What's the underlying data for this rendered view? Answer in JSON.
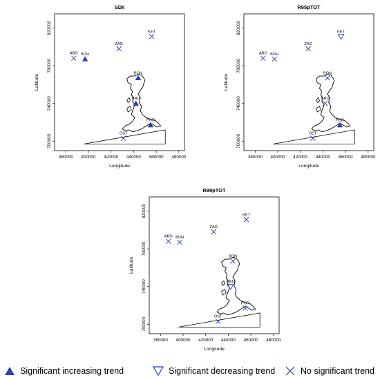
{
  "colors": {
    "marker": "#2a3bbf",
    "axis": "#000000",
    "outline": "#000000"
  },
  "axes_labels": {
    "x_ticks": [
      "380000",
      "400000",
      "420000",
      "440000",
      "460000",
      "480000"
    ],
    "y_ticks": [
      "700000",
      "740000",
      "780000",
      "820000"
    ],
    "xlabel": "Longitude",
    "ylabel": "Latitude"
  },
  "chart_data": [
    {
      "type": "scatter",
      "title": "SDII",
      "xlabel": "Longitude",
      "ylabel": "Latitude",
      "xlim": [
        370000,
        485000
      ],
      "ylim": [
        690000,
        835000
      ],
      "points": [
        {
          "name": "ABO",
          "x": 387000,
          "y": 788000,
          "trend": "none"
        },
        {
          "name": "BOH",
          "x": 397000,
          "y": 787000,
          "trend": "increasing"
        },
        {
          "name": "ZAG",
          "x": 427000,
          "y": 798000,
          "trend": "none"
        },
        {
          "name": "KET",
          "x": 456000,
          "y": 811000,
          "trend": "none"
        },
        {
          "name": "BON",
          "x": 444000,
          "y": 767000,
          "trend": "increasing"
        },
        {
          "name": "KRU",
          "x": 442000,
          "y": 740000,
          "trend": "increasing"
        },
        {
          "name": "POR",
          "x": 455000,
          "y": 717000,
          "trend": "increasing"
        },
        {
          "name": "OST",
          "x": 431000,
          "y": 703000,
          "trend": "none"
        }
      ]
    },
    {
      "type": "scatter",
      "title": "R95pTOT",
      "xlabel": "Longitude",
      "ylabel": "Latitude",
      "xlim": [
        370000,
        485000
      ],
      "ylim": [
        690000,
        835000
      ],
      "points": [
        {
          "name": "ABO",
          "x": 387000,
          "y": 788000,
          "trend": "none"
        },
        {
          "name": "BOH",
          "x": 397000,
          "y": 787000,
          "trend": "none"
        },
        {
          "name": "ZAG",
          "x": 427000,
          "y": 798000,
          "trend": "none"
        },
        {
          "name": "KET",
          "x": 456000,
          "y": 811000,
          "trend": "decreasing"
        },
        {
          "name": "BON",
          "x": 444000,
          "y": 767000,
          "trend": "none"
        },
        {
          "name": "KRU",
          "x": 442000,
          "y": 740000,
          "trend": "none"
        },
        {
          "name": "POR",
          "x": 455000,
          "y": 717000,
          "trend": "increasing"
        },
        {
          "name": "OST",
          "x": 431000,
          "y": 703000,
          "trend": "none"
        }
      ]
    },
    {
      "type": "scatter",
      "title": "R99pTOT",
      "xlabel": "Longitude",
      "ylabel": "Latitude",
      "xlim": [
        370000,
        485000
      ],
      "ylim": [
        690000,
        835000
      ],
      "points": [
        {
          "name": "ABO",
          "x": 387000,
          "y": 788000,
          "trend": "none"
        },
        {
          "name": "BOH",
          "x": 397000,
          "y": 787000,
          "trend": "none"
        },
        {
          "name": "ZAG",
          "x": 427000,
          "y": 798000,
          "trend": "none"
        },
        {
          "name": "KET",
          "x": 456000,
          "y": 811000,
          "trend": "none"
        },
        {
          "name": "BON",
          "x": 444000,
          "y": 767000,
          "trend": "none"
        },
        {
          "name": "KRU",
          "x": 442000,
          "y": 740000,
          "trend": "decreasing"
        },
        {
          "name": "POR",
          "x": 455000,
          "y": 717000,
          "trend": "none"
        },
        {
          "name": "OST",
          "x": 431000,
          "y": 703000,
          "trend": "none"
        }
      ]
    }
  ],
  "legend": {
    "increasing": "Significant increasing trend",
    "decreasing": "Significant decreasing trend",
    "none": "No significant trend"
  }
}
